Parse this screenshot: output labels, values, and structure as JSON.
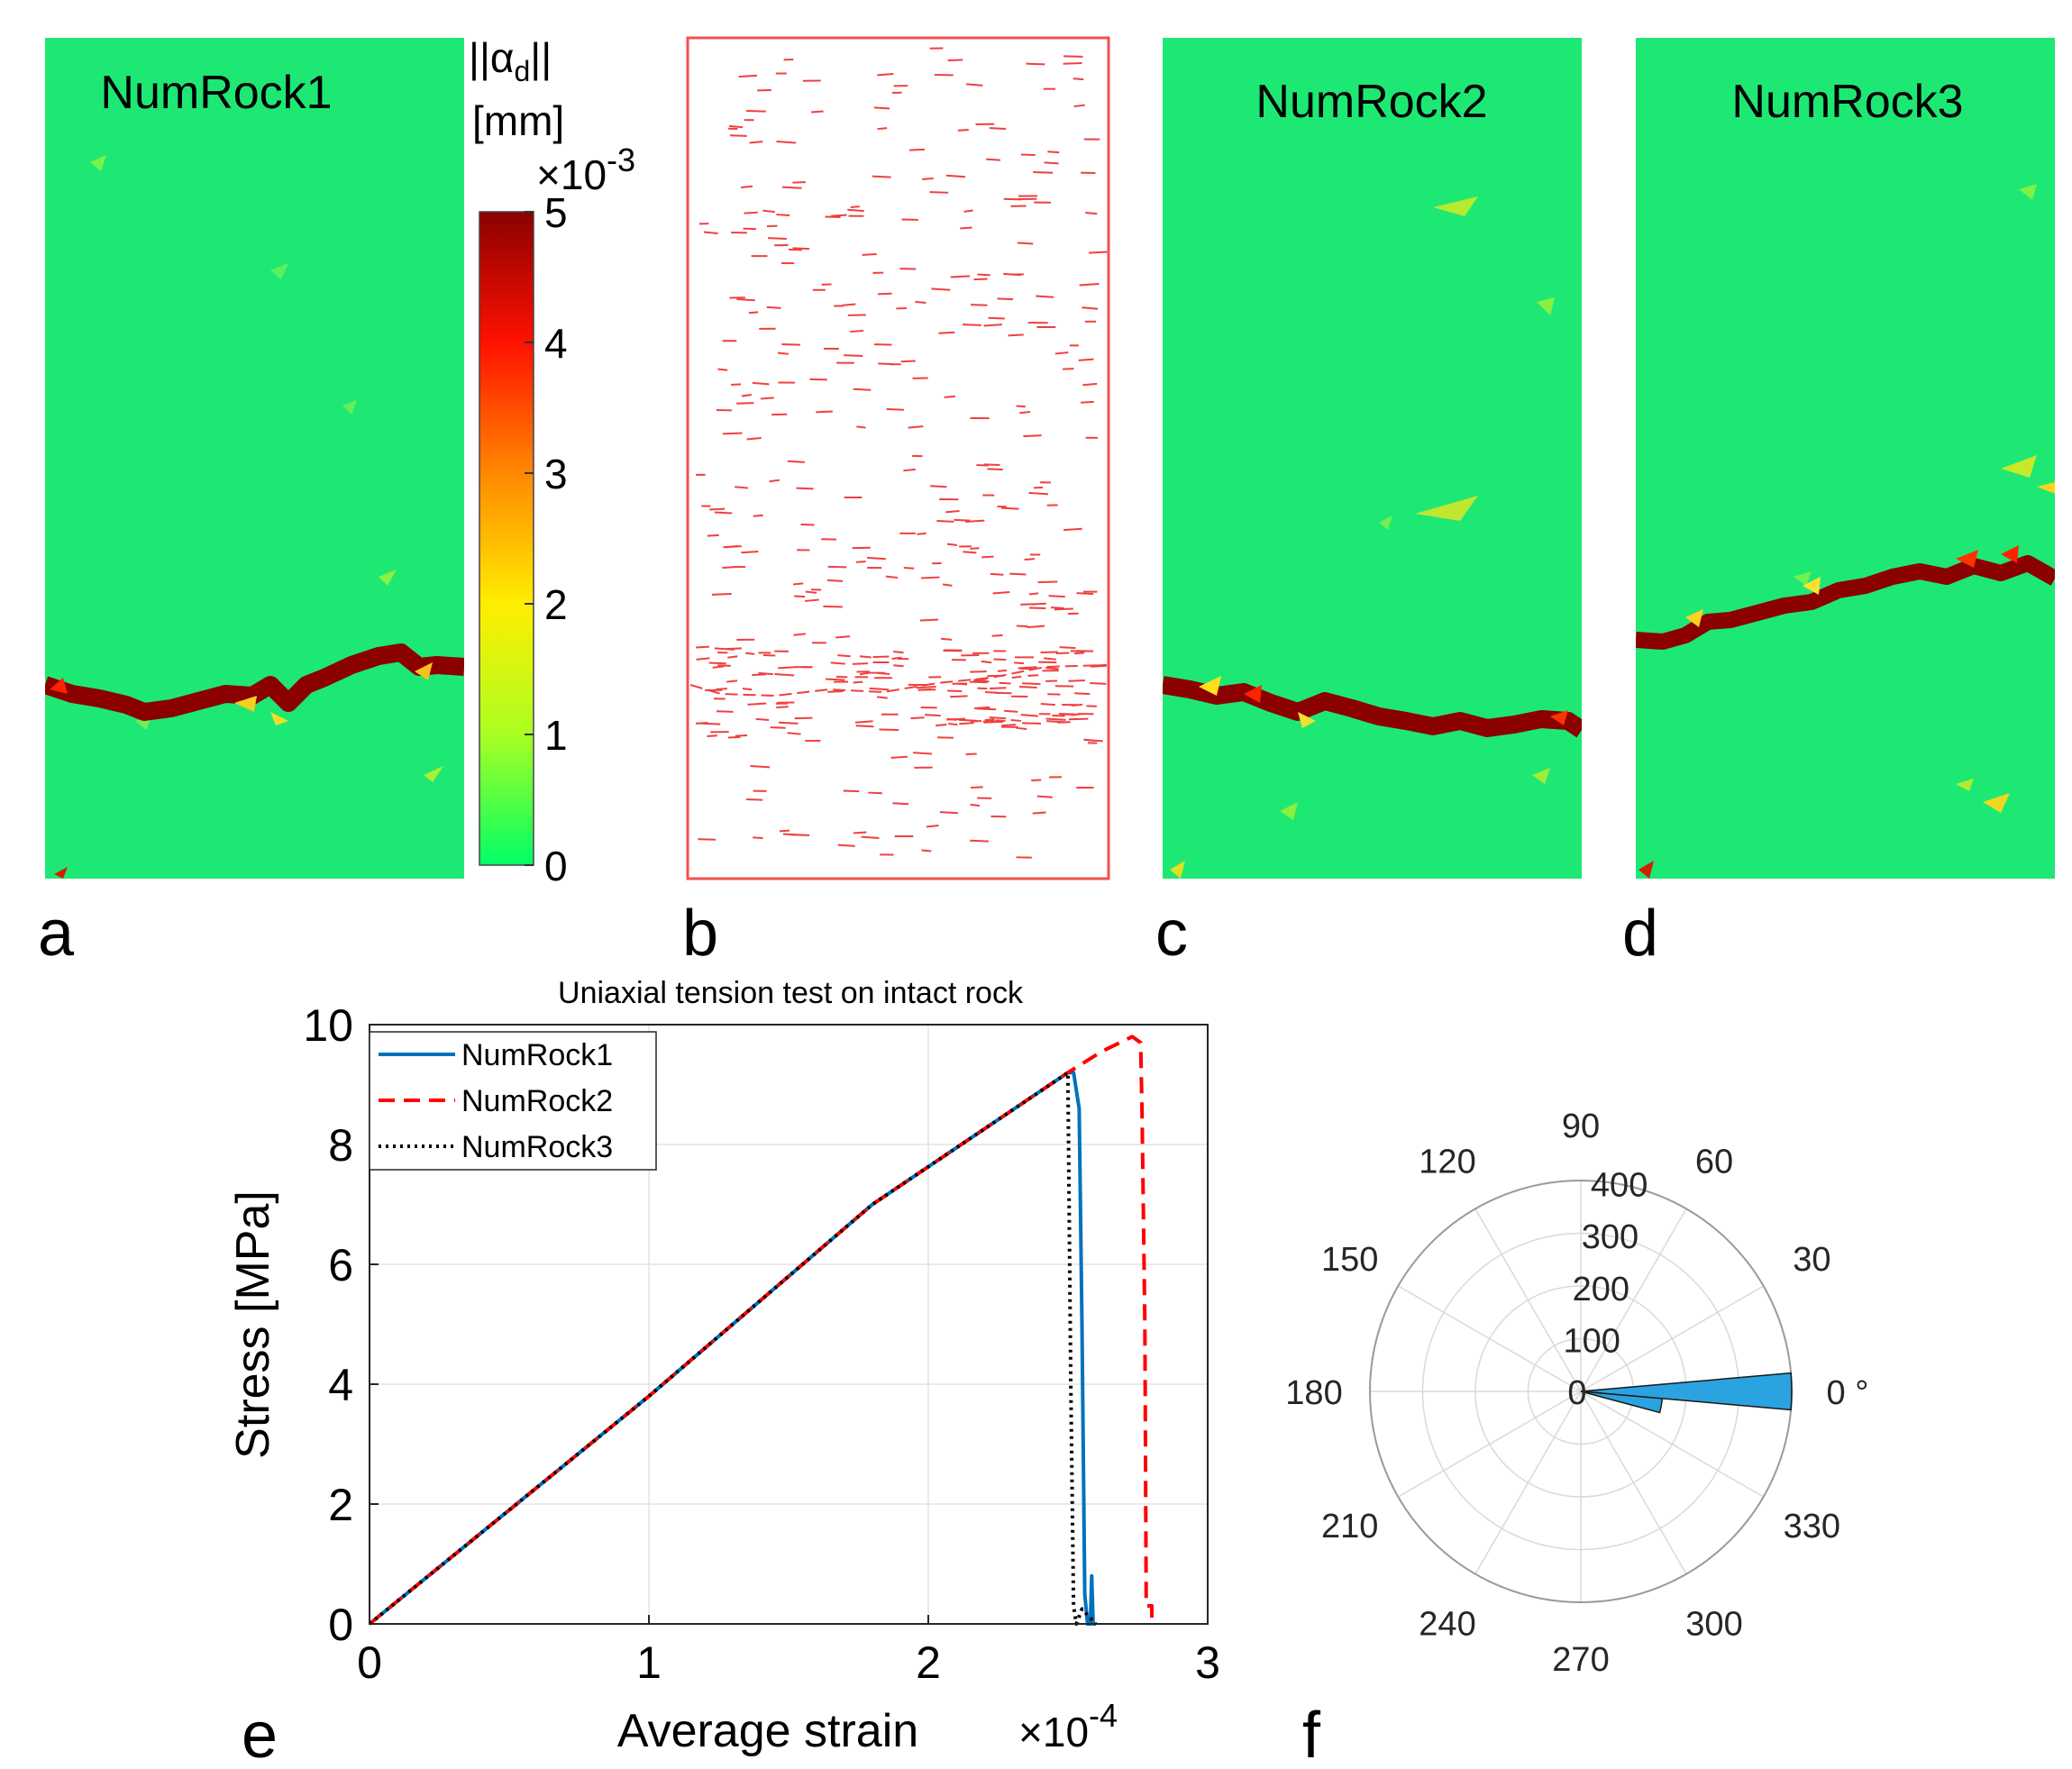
{
  "panels": {
    "a": {
      "letter": "a",
      "label": "NumRock1"
    },
    "b": {
      "letter": "b"
    },
    "c": {
      "letter": "c",
      "label": "NumRock2"
    },
    "d": {
      "letter": "d",
      "label": "NumRock3"
    },
    "e": {
      "letter": "e"
    },
    "f": {
      "letter": "f"
    }
  },
  "colorbar": {
    "title_line1": "||α",
    "title_sub": "d",
    "title_end": "||",
    "title_line2": "[mm]",
    "multiplier_base": "×10",
    "multiplier_exp": "-3",
    "ticks": [
      "5",
      "4",
      "3",
      "2",
      "1",
      "0"
    ],
    "range": [
      0,
      5
    ],
    "colors": [
      "#00ff66",
      "#aaff22",
      "#ffee00",
      "#ff8800",
      "#ff1100",
      "#8b0000"
    ]
  },
  "colors": {
    "background_green": "#1ee874",
    "crack": "#8b0000",
    "numrock1": "#0072bd",
    "numrock2": "#ff0000",
    "numrock3": "#000000",
    "rose": "#2aa3e0"
  },
  "chart_data": [
    {
      "type": "line",
      "title": "Uniaxial tension test on intact rock",
      "xlabel": "Average strain",
      "x_multiplier_base": "×10",
      "x_multiplier_exp": "-4",
      "ylabel": "Stress [MPa]",
      "xlim": [
        0,
        3
      ],
      "ylim": [
        0,
        10
      ],
      "xticks": [
        0,
        1,
        2,
        3
      ],
      "yticks": [
        0,
        2,
        4,
        6,
        8,
        10
      ],
      "grid": true,
      "legend_position": "top-left",
      "series": [
        {
          "name": "NumRock1",
          "style": "solid",
          "x": [
            0,
            1.0,
            1.8,
            2.5,
            2.52,
            2.54,
            2.55,
            2.56,
            2.57,
            2.58,
            2.585,
            2.59,
            2.6
          ],
          "y": [
            0,
            3.8,
            7.0,
            9.2,
            9.2,
            8.6,
            5.0,
            0.5,
            0.0,
            0.0,
            0.8,
            0.0,
            0.0
          ]
        },
        {
          "name": "NumRock2",
          "style": "dashed",
          "x": [
            0,
            1.0,
            1.8,
            2.5,
            2.62,
            2.73,
            2.76,
            2.765,
            2.775,
            2.78,
            2.78,
            2.8,
            2.8
          ],
          "y": [
            0,
            3.8,
            7.0,
            9.2,
            9.55,
            9.8,
            9.7,
            8.5,
            5.0,
            0.3,
            0.3,
            0.3,
            0.0
          ]
        },
        {
          "name": "NumRock3",
          "style": "dotted",
          "x": [
            0,
            1.0,
            1.8,
            2.5,
            2.5,
            2.51,
            2.52,
            2.53,
            2.55,
            2.6
          ],
          "y": [
            0,
            3.8,
            7.0,
            9.2,
            9.0,
            4.0,
            0.3,
            0.0,
            0.25,
            0.0
          ]
        }
      ]
    },
    {
      "type": "polar_histogram",
      "angle_labels": [
        "90",
        "60",
        "30",
        "0 °",
        "330",
        "300",
        "270",
        "240",
        "210",
        "180",
        "150",
        "120"
      ],
      "angle_label_values": [
        90,
        60,
        30,
        0,
        330,
        300,
        270,
        240,
        210,
        180,
        150,
        120
      ],
      "radial_ticks": [
        "100",
        "200",
        "300",
        "400"
      ],
      "radial_tick_values": [
        100,
        200,
        300,
        400
      ],
      "radial_zero": "0",
      "rlim": [
        0,
        400
      ],
      "bins": [
        {
          "from_deg": -5,
          "to_deg": 5,
          "count": 400
        },
        {
          "from_deg": -15,
          "to_deg": -5,
          "count": 155
        }
      ]
    }
  ]
}
